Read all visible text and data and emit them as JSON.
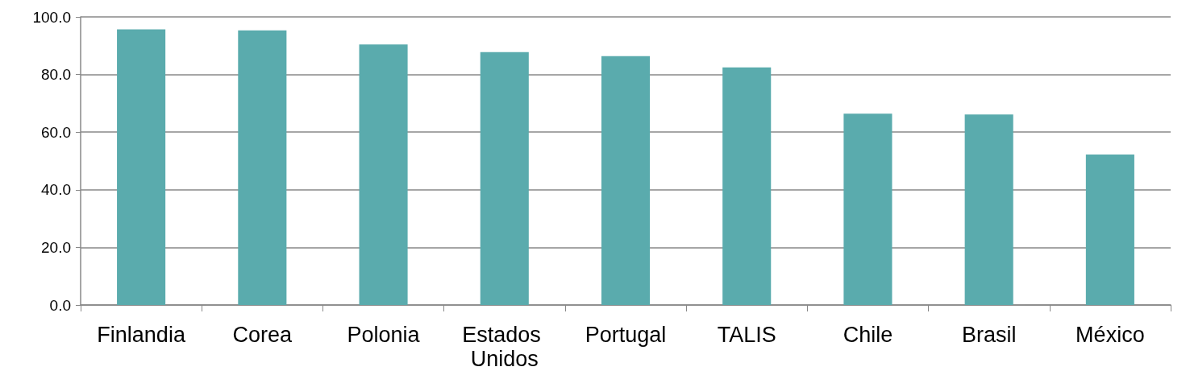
{
  "chart_data": {
    "type": "bar",
    "categories": [
      "Finlandia",
      "Corea",
      "Polonia",
      "Estados Unidos",
      "Portugal",
      "TALIS",
      "Chile",
      "Brasil",
      "México"
    ],
    "values": [
      95.7,
      95.3,
      90.4,
      87.8,
      86.4,
      82.5,
      66.4,
      66.1,
      52.2
    ],
    "color": "#5aabad",
    "ylim": [
      0,
      100
    ],
    "yticks": [
      {
        "value": 0,
        "label": "0.0"
      },
      {
        "value": 20,
        "label": "20.0"
      },
      {
        "value": 40,
        "label": "40.0"
      },
      {
        "value": 60,
        "label": "60.0"
      },
      {
        "value": 80,
        "label": "80.0"
      },
      {
        "value": 100,
        "label": "100.0"
      }
    ],
    "grid": "y"
  }
}
